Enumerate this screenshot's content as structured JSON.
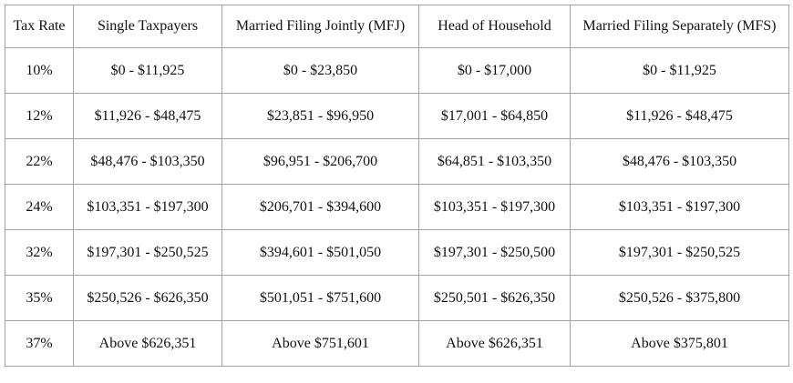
{
  "table": {
    "columns": [
      "Tax Rate",
      "Single Taxpayers",
      "Married Filing Jointly (MFJ)",
      "Head of Household",
      "Married Filing Separately (MFS)"
    ],
    "rows": [
      [
        "10%",
        "$0 - $11,925",
        "$0 - $23,850",
        "$0 - $17,000",
        "$0 - $11,925"
      ],
      [
        "12%",
        "$11,926 - $48,475",
        "$23,851 - $96,950",
        "$17,001 - $64,850",
        "$11,926 - $48,475"
      ],
      [
        "22%",
        "$48,476 - $103,350",
        "$96,951 - $206,700",
        "$64,851 - $103,350",
        "$48,476 - $103,350"
      ],
      [
        "24%",
        "$103,351 - $197,300",
        "$206,701 - $394,600",
        "$103,351 - $197,300",
        "$103,351 - $197,300"
      ],
      [
        "32%",
        "$197,301 - $250,525",
        "$394,601 - $501,050",
        "$197,301 - $250,500",
        "$197,301 - $250,525"
      ],
      [
        "35%",
        "$250,526 - $626,350",
        "$501,051 - $751,600",
        "$250,501 - $626,350",
        "$250,526 - $375,800"
      ],
      [
        "37%",
        "Above $626,351",
        "Above $751,601",
        "Above $626,351",
        "Above $375,801"
      ]
    ]
  },
  "colors": {
    "border": "#a3a3a3",
    "text": "#111111",
    "background": "#ffffff"
  }
}
